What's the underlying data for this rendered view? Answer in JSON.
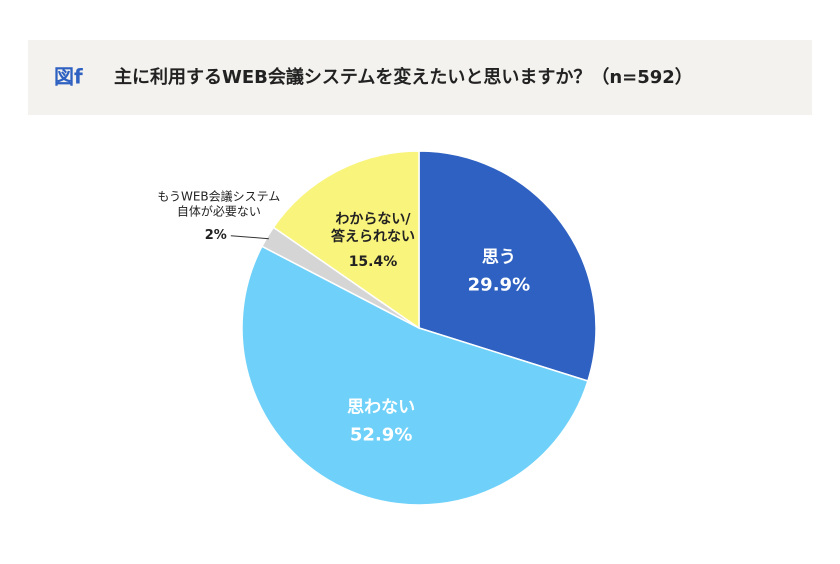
{
  "chart_data": {
    "type": "pie",
    "figure_label": "図f",
    "title": "主に利用するWEB会議システムを変えたいと思いますか？（n=592）",
    "categories": [
      "思う",
      "思わない",
      "もうWEB会議システム\n自体が必要ない",
      "わからない/\n答えられない"
    ],
    "values": [
      29.9,
      52.9,
      2,
      15.4
    ],
    "value_labels": [
      "29.9%",
      "52.9%",
      "2%",
      "15.4%"
    ],
    "colors": [
      "#2e61c1",
      "#6fd1f9",
      "#d5d5d5",
      "#f9f47b"
    ]
  }
}
